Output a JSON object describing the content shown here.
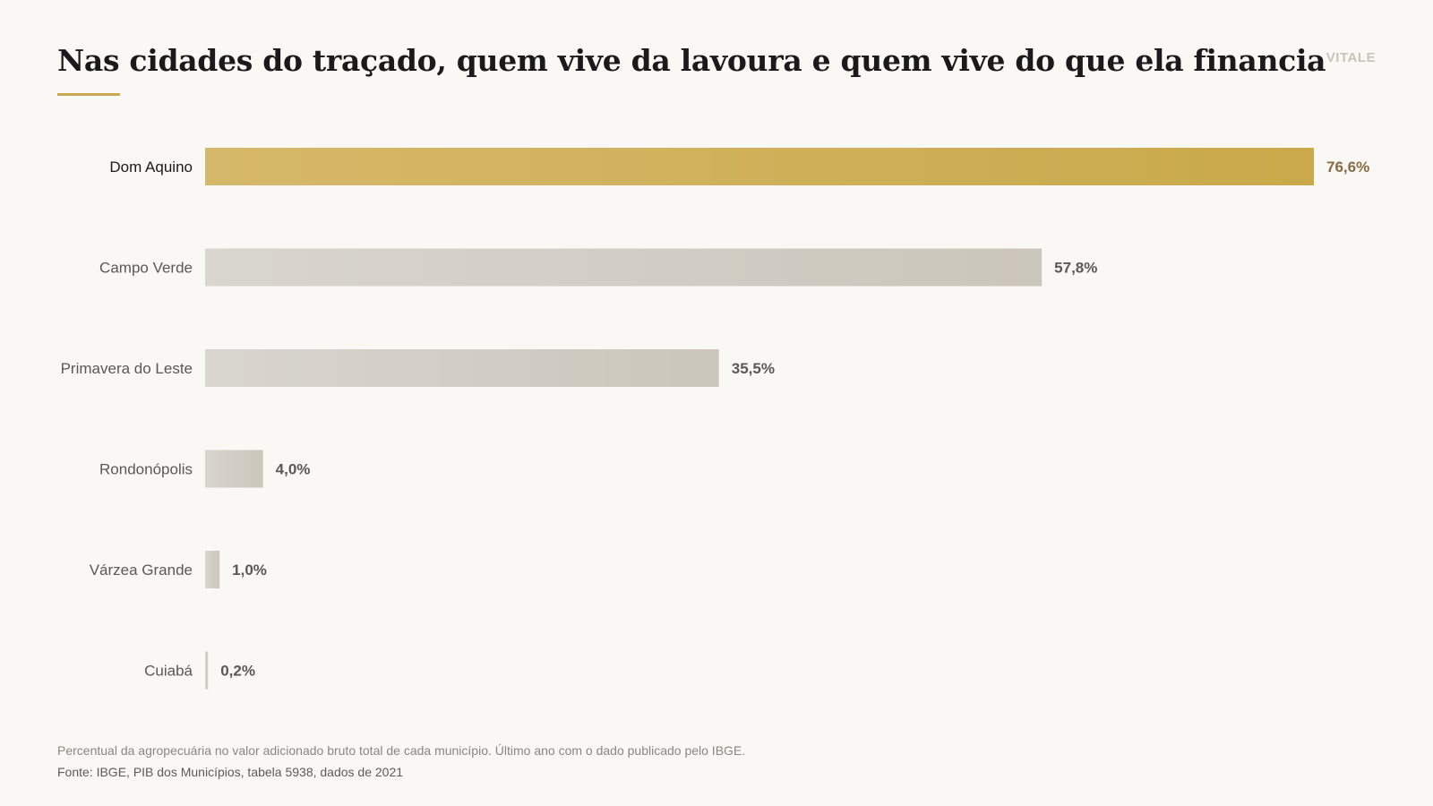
{
  "header": {
    "title": "Nas cidades do traçado, quem vive da lavoura e quem vive do que ela financia",
    "brand": "VITALE"
  },
  "colors": {
    "highlight_bar_start": "#d6b86a",
    "highlight_bar_end": "#c9a94a",
    "highlight_value": "#8a6a44",
    "bar_start": "#d9d5cf",
    "bar_end": "#cbc6bb",
    "value": "#5a5854",
    "label": "#5a5854",
    "highlight_label": "#1a1a1a",
    "accent": "#c9a94f"
  },
  "chart_data": {
    "type": "bar",
    "orientation": "horizontal",
    "categories": [
      "Dom Aquino",
      "Campo Verde",
      "Primavera do Leste",
      "Rondonópolis",
      "Várzea Grande",
      "Cuiabá"
    ],
    "values": [
      76.6,
      57.8,
      35.5,
      4.0,
      1.0,
      0.2
    ],
    "value_labels": [
      "76,6%",
      "57,8%",
      "35,5%",
      "4,0%",
      "1,0%",
      "0,2%"
    ],
    "highlight_index": 0,
    "xlim": [
      0,
      76.6
    ],
    "grid": false,
    "legend": "none"
  },
  "footer": {
    "note": "Percentual da agropecuária no valor adicionado bruto total de cada município. Último ano com o dado publicado pelo IBGE.",
    "source": "Fonte: IBGE, PIB dos Municípios, tabela 5938, dados de 2021"
  }
}
